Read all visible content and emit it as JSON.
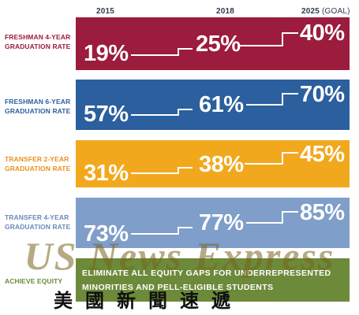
{
  "columns": {
    "c2015": "2015",
    "c2018": "2018",
    "c2025": "2025",
    "goal": "(GOAL)"
  },
  "rows": [
    {
      "label_line1": "FRESHMAN 4-YEAR",
      "label_line2": "GRADUATION RATE",
      "v2015": "19%",
      "v2018": "25%",
      "v2025": "40%",
      "color": "#9b1c3c",
      "label_color": "#9b1c3c"
    },
    {
      "label_line1": "FRESHMAN 6-YEAR",
      "label_line2": "GRADUATION RATE",
      "v2015": "57%",
      "v2018": "61%",
      "v2025": "70%",
      "color": "#2b5f9e",
      "label_color": "#2b5f9e"
    },
    {
      "label_line1": "TRANSFER 2-YEAR",
      "label_line2": "GRADUATION RATE",
      "v2015": "31%",
      "v2018": "38%",
      "v2025": "45%",
      "color": "#f2a81d",
      "label_color": "#e8921a"
    },
    {
      "label_line1": "TRANSFER 4-YEAR",
      "label_line2": "GRADUATION RATE",
      "v2015": "73%",
      "v2018": "77%",
      "v2025": "85%",
      "color": "#7f9ec9",
      "label_color": "#6b89b8"
    }
  ],
  "equity": {
    "label": "ACHIEVE EQUITY",
    "line1": "ELIMINATE ALL EQUITY GAPS FOR UNDERREPRESENTED",
    "line2": "MINORITIES AND PELL-ELIGIBLE STUDENTS",
    "color": "#6c8a3a",
    "label_color": "#6c8a3a"
  },
  "watermark": {
    "latin": "US News Express",
    "chinese": "美國新聞速遞"
  }
}
